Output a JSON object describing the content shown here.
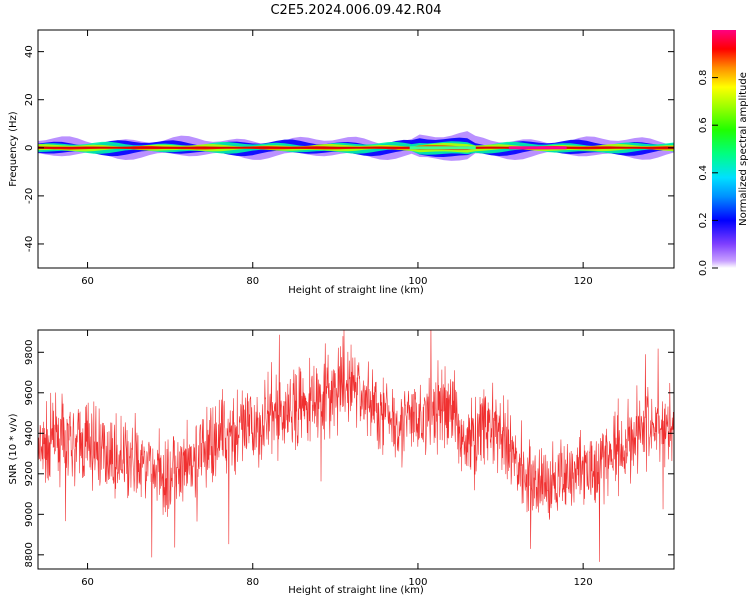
{
  "title": "C2E5.2024.006.09.42.R04",
  "chart_data": [
    {
      "type": "heatmap",
      "xlabel": "Height of straight line (km)",
      "ylabel": "Frequency (Hz)",
      "xlim": [
        54,
        131
      ],
      "ylim": [
        -50,
        49
      ],
      "xticks": [
        60,
        80,
        100,
        120
      ],
      "yticks": [
        -40,
        -20,
        0,
        20,
        40
      ],
      "colorbar": {
        "label": "Normalized spectral amplitude",
        "range": [
          0,
          1
        ],
        "ticks": [
          "0.0",
          "0.2",
          "0.4",
          "0.6",
          "0.8"
        ]
      },
      "bands": [
        {
          "half_width_hz": 3.2,
          "level": 0.05
        },
        {
          "half_width_hz": 2.2,
          "level": 0.2
        },
        {
          "half_width_hz": 1.6,
          "level": 0.45
        },
        {
          "half_width_hz": 1.0,
          "level": 0.7
        },
        {
          "half_width_hz": 0.5,
          "level": 0.9
        }
      ]
    },
    {
      "type": "line",
      "xlabel": "Height of straight line (km)",
      "ylabel": "SNR (10 * v/v)",
      "xlim": [
        54,
        131
      ],
      "ylim": [
        8730,
        9910
      ],
      "xticks": [
        60,
        80,
        100,
        120
      ],
      "yticks": [
        8800,
        9000,
        9200,
        9400,
        9600,
        9800
      ],
      "color": "#f03030",
      "x": [
        54,
        56,
        58,
        60,
        62,
        64,
        66,
        68,
        70,
        72,
        74,
        76,
        78,
        80,
        82,
        84,
        86,
        88,
        90,
        92,
        94,
        96,
        98,
        100,
        102,
        104,
        106,
        108,
        110,
        112,
        114,
        116,
        118,
        120,
        122,
        124,
        126,
        128,
        130,
        131
      ],
      "y": [
        9280,
        9380,
        9330,
        9350,
        9310,
        9260,
        9250,
        9220,
        9170,
        9210,
        9300,
        9390,
        9400,
        9420,
        9480,
        9500,
        9520,
        9600,
        9580,
        9660,
        9550,
        9500,
        9460,
        9470,
        9500,
        9540,
        9330,
        9470,
        9370,
        9270,
        9170,
        9140,
        9200,
        9230,
        9260,
        9300,
        9390,
        9450,
        9420,
        9440
      ],
      "noise_amplitude": 140
    }
  ]
}
